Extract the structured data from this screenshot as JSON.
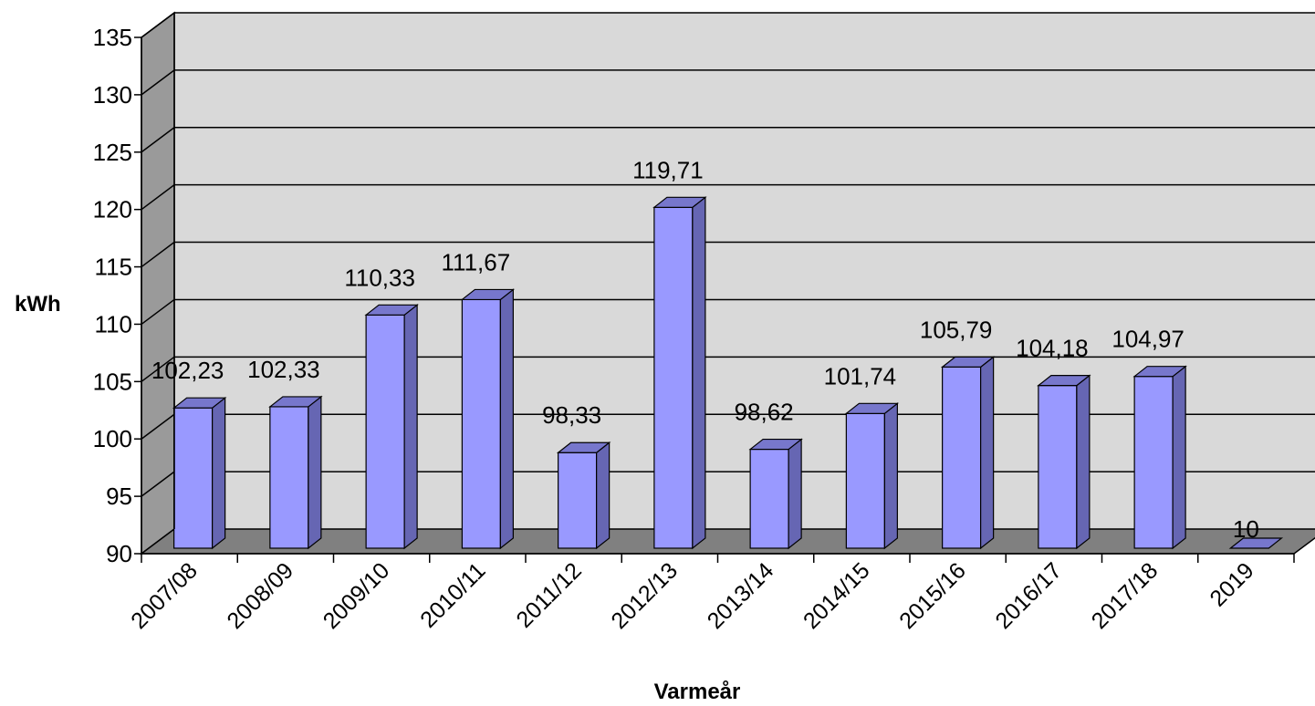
{
  "chart_data": {
    "type": "bar",
    "categories": [
      "2007/08",
      "2008/09",
      "2009/10",
      "2010/11",
      "2011/12",
      "2012/13",
      "2013/14",
      "2014/15",
      "2015/16",
      "2016/17",
      "2017/18",
      "2019"
    ],
    "values": [
      102.23,
      102.33,
      110.33,
      111.67,
      98.33,
      119.71,
      98.62,
      101.74,
      105.79,
      104.18,
      104.97,
      10
    ],
    "data_labels": [
      "102,23",
      "102,33",
      "110,33",
      "111,67",
      "98,33",
      "119,71",
      "98,62",
      "101,74",
      "105,79",
      "104,18",
      "104,97",
      "10"
    ],
    "ylim": [
      90,
      135
    ],
    "yticks": [
      "90",
      "95",
      "100",
      "105",
      "110",
      "115",
      "120",
      "125",
      "130",
      "135"
    ],
    "xlabel": "Varmeår",
    "ylabel": "kWh",
    "grid": true,
    "legend": "none",
    "style": "3d-column",
    "colors": {
      "bar_front": "#9999ff",
      "bar_side": "#6666b3",
      "bar_top": "#7777cc",
      "back_wall": "#d9d9d9",
      "side_wall": "#9a9a9a",
      "floor": "#808080"
    }
  }
}
